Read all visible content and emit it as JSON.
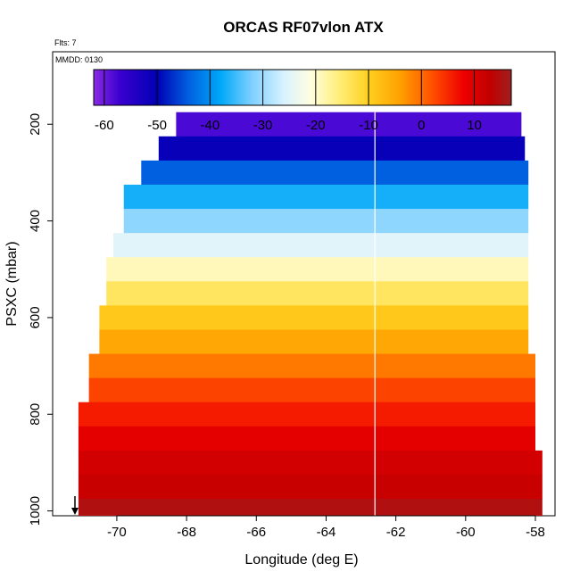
{
  "chart_data": {
    "type": "heatmap",
    "title": "ORCAS RF07vlon ATX",
    "flts_label": "Flts: 7",
    "mmdd_label": "MMDD: 0130",
    "xlabel": "Longitude (deg E)",
    "ylabel": "PSXC (mbar)",
    "xlim": [
      -71.2,
      -58.0
    ],
    "ylim": [
      1010,
      50
    ],
    "y_reversed": true,
    "x_ticks": [
      -70,
      -68,
      -66,
      -64,
      -62,
      -60,
      -58
    ],
    "y_ticks": [
      200,
      400,
      600,
      800,
      1000
    ],
    "colorbar": {
      "range": [
        -62,
        17
      ],
      "ticks": [
        -60,
        -50,
        -40,
        -30,
        -20,
        -10,
        0,
        10
      ],
      "stops": [
        {
          "v": -62,
          "c": "#8a2be2"
        },
        {
          "v": -57,
          "c": "#3a00d0"
        },
        {
          "v": -50,
          "c": "#0000b4"
        },
        {
          "v": -44,
          "c": "#0060e0"
        },
        {
          "v": -38,
          "c": "#00a8f8"
        },
        {
          "v": -32,
          "c": "#80d0ff"
        },
        {
          "v": -26,
          "c": "#d8f2ff"
        },
        {
          "v": -21,
          "c": "#fffee0"
        },
        {
          "v": -16,
          "c": "#fff080"
        },
        {
          "v": -10,
          "c": "#ffd020"
        },
        {
          "v": -4,
          "c": "#ffa000"
        },
        {
          "v": 2,
          "c": "#ff5000"
        },
        {
          "v": 8,
          "c": "#ee0000"
        },
        {
          "v": 13,
          "c": "#c00000"
        },
        {
          "v": 17,
          "c": "#a02020"
        }
      ]
    },
    "layers": [
      {
        "p_top": 175,
        "p_bot": 225,
        "x0": -68.3,
        "x1": -58.4,
        "t": -58
      },
      {
        "p_top": 225,
        "p_bot": 275,
        "x0": -68.8,
        "x1": -58.3,
        "t": -51
      },
      {
        "p_top": 275,
        "p_bot": 325,
        "x0": -69.3,
        "x1": -58.2,
        "t": -44
      },
      {
        "p_top": 325,
        "p_bot": 375,
        "x0": -69.8,
        "x1": -58.2,
        "t": -37
      },
      {
        "p_top": 375,
        "p_bot": 425,
        "x0": -69.8,
        "x1": -58.2,
        "t": -31
      },
      {
        "p_top": 425,
        "p_bot": 475,
        "x0": -70.1,
        "x1": -58.2,
        "t": -25
      },
      {
        "p_top": 475,
        "p_bot": 525,
        "x0": -70.3,
        "x1": -58.2,
        "t": -19
      },
      {
        "p_top": 525,
        "p_bot": 575,
        "x0": -70.3,
        "x1": -58.2,
        "t": -14
      },
      {
        "p_top": 575,
        "p_bot": 625,
        "x0": -70.5,
        "x1": -58.2,
        "t": -9
      },
      {
        "p_top": 625,
        "p_bot": 675,
        "x0": -70.5,
        "x1": -58.2,
        "t": -5
      },
      {
        "p_top": 675,
        "p_bot": 725,
        "x0": -70.8,
        "x1": -58.0,
        "t": -1
      },
      {
        "p_top": 725,
        "p_bot": 775,
        "x0": -70.8,
        "x1": -58.0,
        "t": 3
      },
      {
        "p_top": 775,
        "p_bot": 825,
        "x0": -71.1,
        "x1": -58.0,
        "t": 6
      },
      {
        "p_top": 825,
        "p_bot": 875,
        "x0": -71.1,
        "x1": -58.0,
        "t": 9
      },
      {
        "p_top": 875,
        "p_bot": 925,
        "x0": -71.1,
        "x1": -57.8,
        "t": 11
      },
      {
        "p_top": 925,
        "p_bot": 975,
        "x0": -71.1,
        "x1": -57.8,
        "t": 12
      },
      {
        "p_top": 975,
        "p_bot": 1010,
        "x0": -71.1,
        "x1": -57.8,
        "t": 15
      }
    ],
    "flight_track_lon": -62.6
  }
}
